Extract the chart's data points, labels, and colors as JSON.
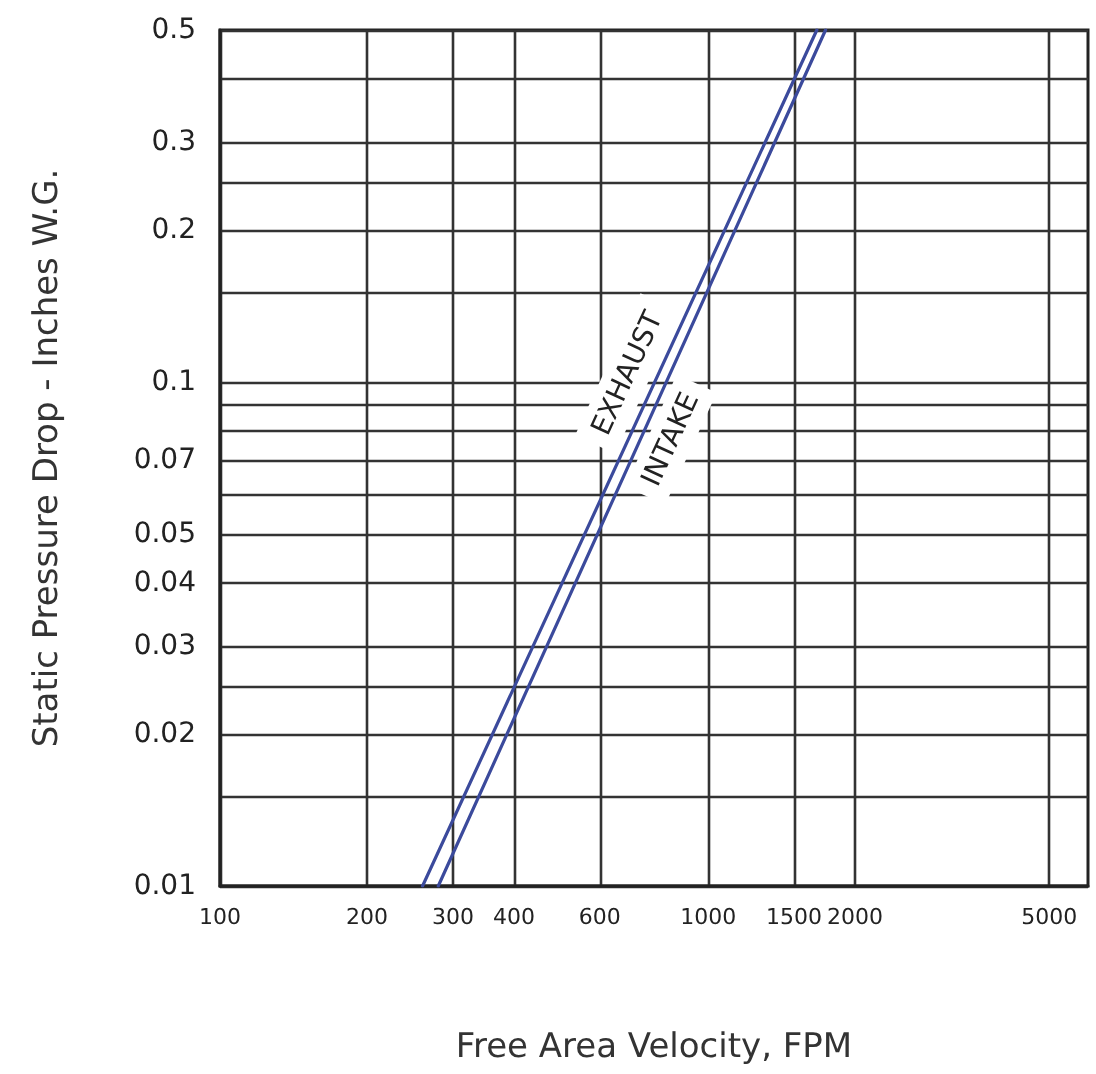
{
  "chart_data": {
    "type": "line",
    "xlabel": "Free Area Velocity, FPM",
    "ylabel": "Static Pressure Drop - Inches W.G.",
    "log": "xy",
    "grid": true,
    "marker": "none",
    "line_style": "solid",
    "xlim": [
      100,
      6000
    ],
    "ylim": [
      0.01,
      0.5
    ],
    "xticks": [
      100,
      200,
      300,
      400,
      600,
      1000,
      1500,
      2000,
      5000
    ],
    "yticks": [
      0.01,
      {
        "value": 0.015,
        "label": null
      },
      0.02,
      {
        "value": 0.025,
        "label": null
      },
      0.03,
      0.04,
      0.05,
      {
        "value": 0.06,
        "label": null
      },
      0.07,
      {
        "value": 0.08,
        "label": null
      },
      {
        "value": 0.09,
        "label": null
      },
      0.1,
      {
        "value": 0.15,
        "label": null
      },
      0.2,
      {
        "value": 0.25,
        "label": null
      },
      0.3,
      {
        "value": 0.4,
        "label": null
      },
      0.5
    ],
    "series": [
      {
        "color": "#3b4a9c",
        "x": [
          260,
          1670
        ],
        "values": [
          0.01,
          0.5
        ]
      },
      {
        "color": "#3b4a9c",
        "x": [
          280,
          1740
        ],
        "values": [
          0.01,
          0.5
        ]
      }
    ],
    "annotations": [
      "EXHAUST",
      "INTAKE"
    ]
  }
}
